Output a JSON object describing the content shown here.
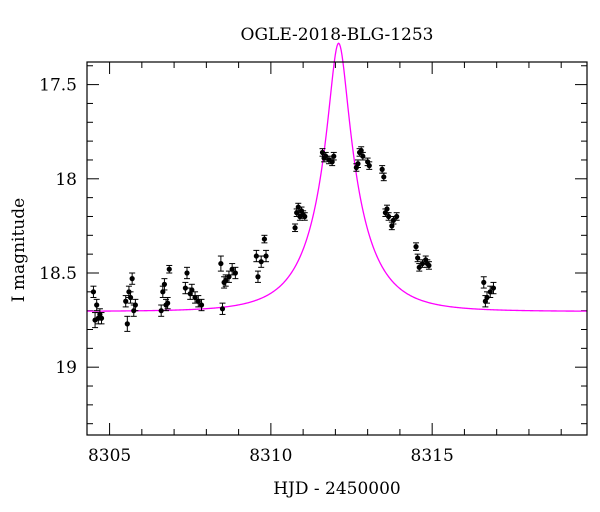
{
  "chart_data": {
    "type": "scatter",
    "title": "OGLE-2018-BLG-1253",
    "xlabel": "HJD - 2450000",
    "ylabel": "I magnitude",
    "xlim": [
      8304.3,
      8319.8
    ],
    "ylim": [
      19.36,
      17.38
    ],
    "y_inverted": true,
    "xticks": [
      8305,
      8310,
      8315
    ],
    "xtick_labels": [
      "8305",
      "8310",
      "8315"
    ],
    "xminor_step": 1,
    "yticks": [
      17.5,
      18,
      18.5,
      19
    ],
    "ytick_labels": [
      "17.5",
      "18",
      "18.5",
      "19"
    ],
    "yminor_step": 0.1,
    "grid": false,
    "model_color": "#ff00ff",
    "model": {
      "t0": 8312.1,
      "tE": 1.5,
      "u0": 0.1835,
      "baseline": 18.7042,
      "fs": 0.6
    },
    "series": [
      {
        "x": [
          8304.5,
          8304.55,
          8304.6,
          8304.65,
          8304.7,
          8304.75,
          8305.5,
          8305.55,
          8305.6,
          8305.65,
          8305.7,
          8305.75,
          8305.8,
          8306.6,
          8306.65,
          8306.7,
          8306.75,
          8306.8,
          8306.85,
          8307.35,
          8307.4,
          8307.5,
          8307.55,
          8307.65,
          8307.75,
          8307.85,
          8308.45,
          8308.5,
          8308.55,
          8308.6,
          8308.7,
          8308.8,
          8308.9,
          8309.55,
          8309.6,
          8309.7,
          8309.8,
          8309.85,
          8310.75,
          8310.8,
          8310.85,
          8310.9,
          8310.95,
          8311.0,
          8311.05,
          8311.6,
          8311.65,
          8311.7,
          8311.8,
          8311.9,
          8311.95,
          8312.65,
          8312.7,
          8312.75,
          8312.8,
          8312.85,
          8313.0,
          8313.05,
          8313.45,
          8313.5,
          8313.55,
          8313.6,
          8313.65,
          8313.75,
          8313.8,
          8313.9,
          8314.5,
          8314.55,
          8314.6,
          8314.7,
          8314.8,
          8314.85,
          8314.9,
          8316.6,
          8316.65,
          8316.7,
          8316.8,
          8316.9
        ],
        "y": [
          18.6,
          18.75,
          18.67,
          18.74,
          18.72,
          18.74,
          18.65,
          18.77,
          18.6,
          18.63,
          18.53,
          18.7,
          18.67,
          18.7,
          18.6,
          18.56,
          18.67,
          18.66,
          18.48,
          18.58,
          18.5,
          18.61,
          18.59,
          18.63,
          18.65,
          18.67,
          18.45,
          18.69,
          18.55,
          18.54,
          18.52,
          18.48,
          18.5,
          18.41,
          18.52,
          18.44,
          18.32,
          18.41,
          18.26,
          18.18,
          18.15,
          18.2,
          18.17,
          18.19,
          18.2,
          17.86,
          17.89,
          17.88,
          17.9,
          17.91,
          17.88,
          17.94,
          17.92,
          17.86,
          17.85,
          17.88,
          17.91,
          17.93,
          17.95,
          17.99,
          18.18,
          18.16,
          18.2,
          18.25,
          18.22,
          18.2,
          18.36,
          18.42,
          18.47,
          18.45,
          18.43,
          18.45,
          18.46,
          18.55,
          18.65,
          18.63,
          18.6,
          18.58
        ],
        "yerr": [
          0.03,
          0.04,
          0.03,
          0.03,
          0.03,
          0.03,
          0.03,
          0.04,
          0.03,
          0.03,
          0.03,
          0.03,
          0.03,
          0.03,
          0.03,
          0.03,
          0.03,
          0.03,
          0.02,
          0.03,
          0.03,
          0.03,
          0.03,
          0.03,
          0.03,
          0.03,
          0.04,
          0.03,
          0.03,
          0.03,
          0.03,
          0.03,
          0.03,
          0.03,
          0.03,
          0.03,
          0.02,
          0.03,
          0.02,
          0.02,
          0.02,
          0.02,
          0.02,
          0.02,
          0.02,
          0.02,
          0.02,
          0.02,
          0.02,
          0.02,
          0.02,
          0.02,
          0.02,
          0.02,
          0.02,
          0.02,
          0.02,
          0.02,
          0.02,
          0.02,
          0.02,
          0.02,
          0.02,
          0.02,
          0.02,
          0.02,
          0.02,
          0.02,
          0.02,
          0.02,
          0.02,
          0.02,
          0.02,
          0.03,
          0.03,
          0.03,
          0.03,
          0.03
        ]
      }
    ]
  }
}
